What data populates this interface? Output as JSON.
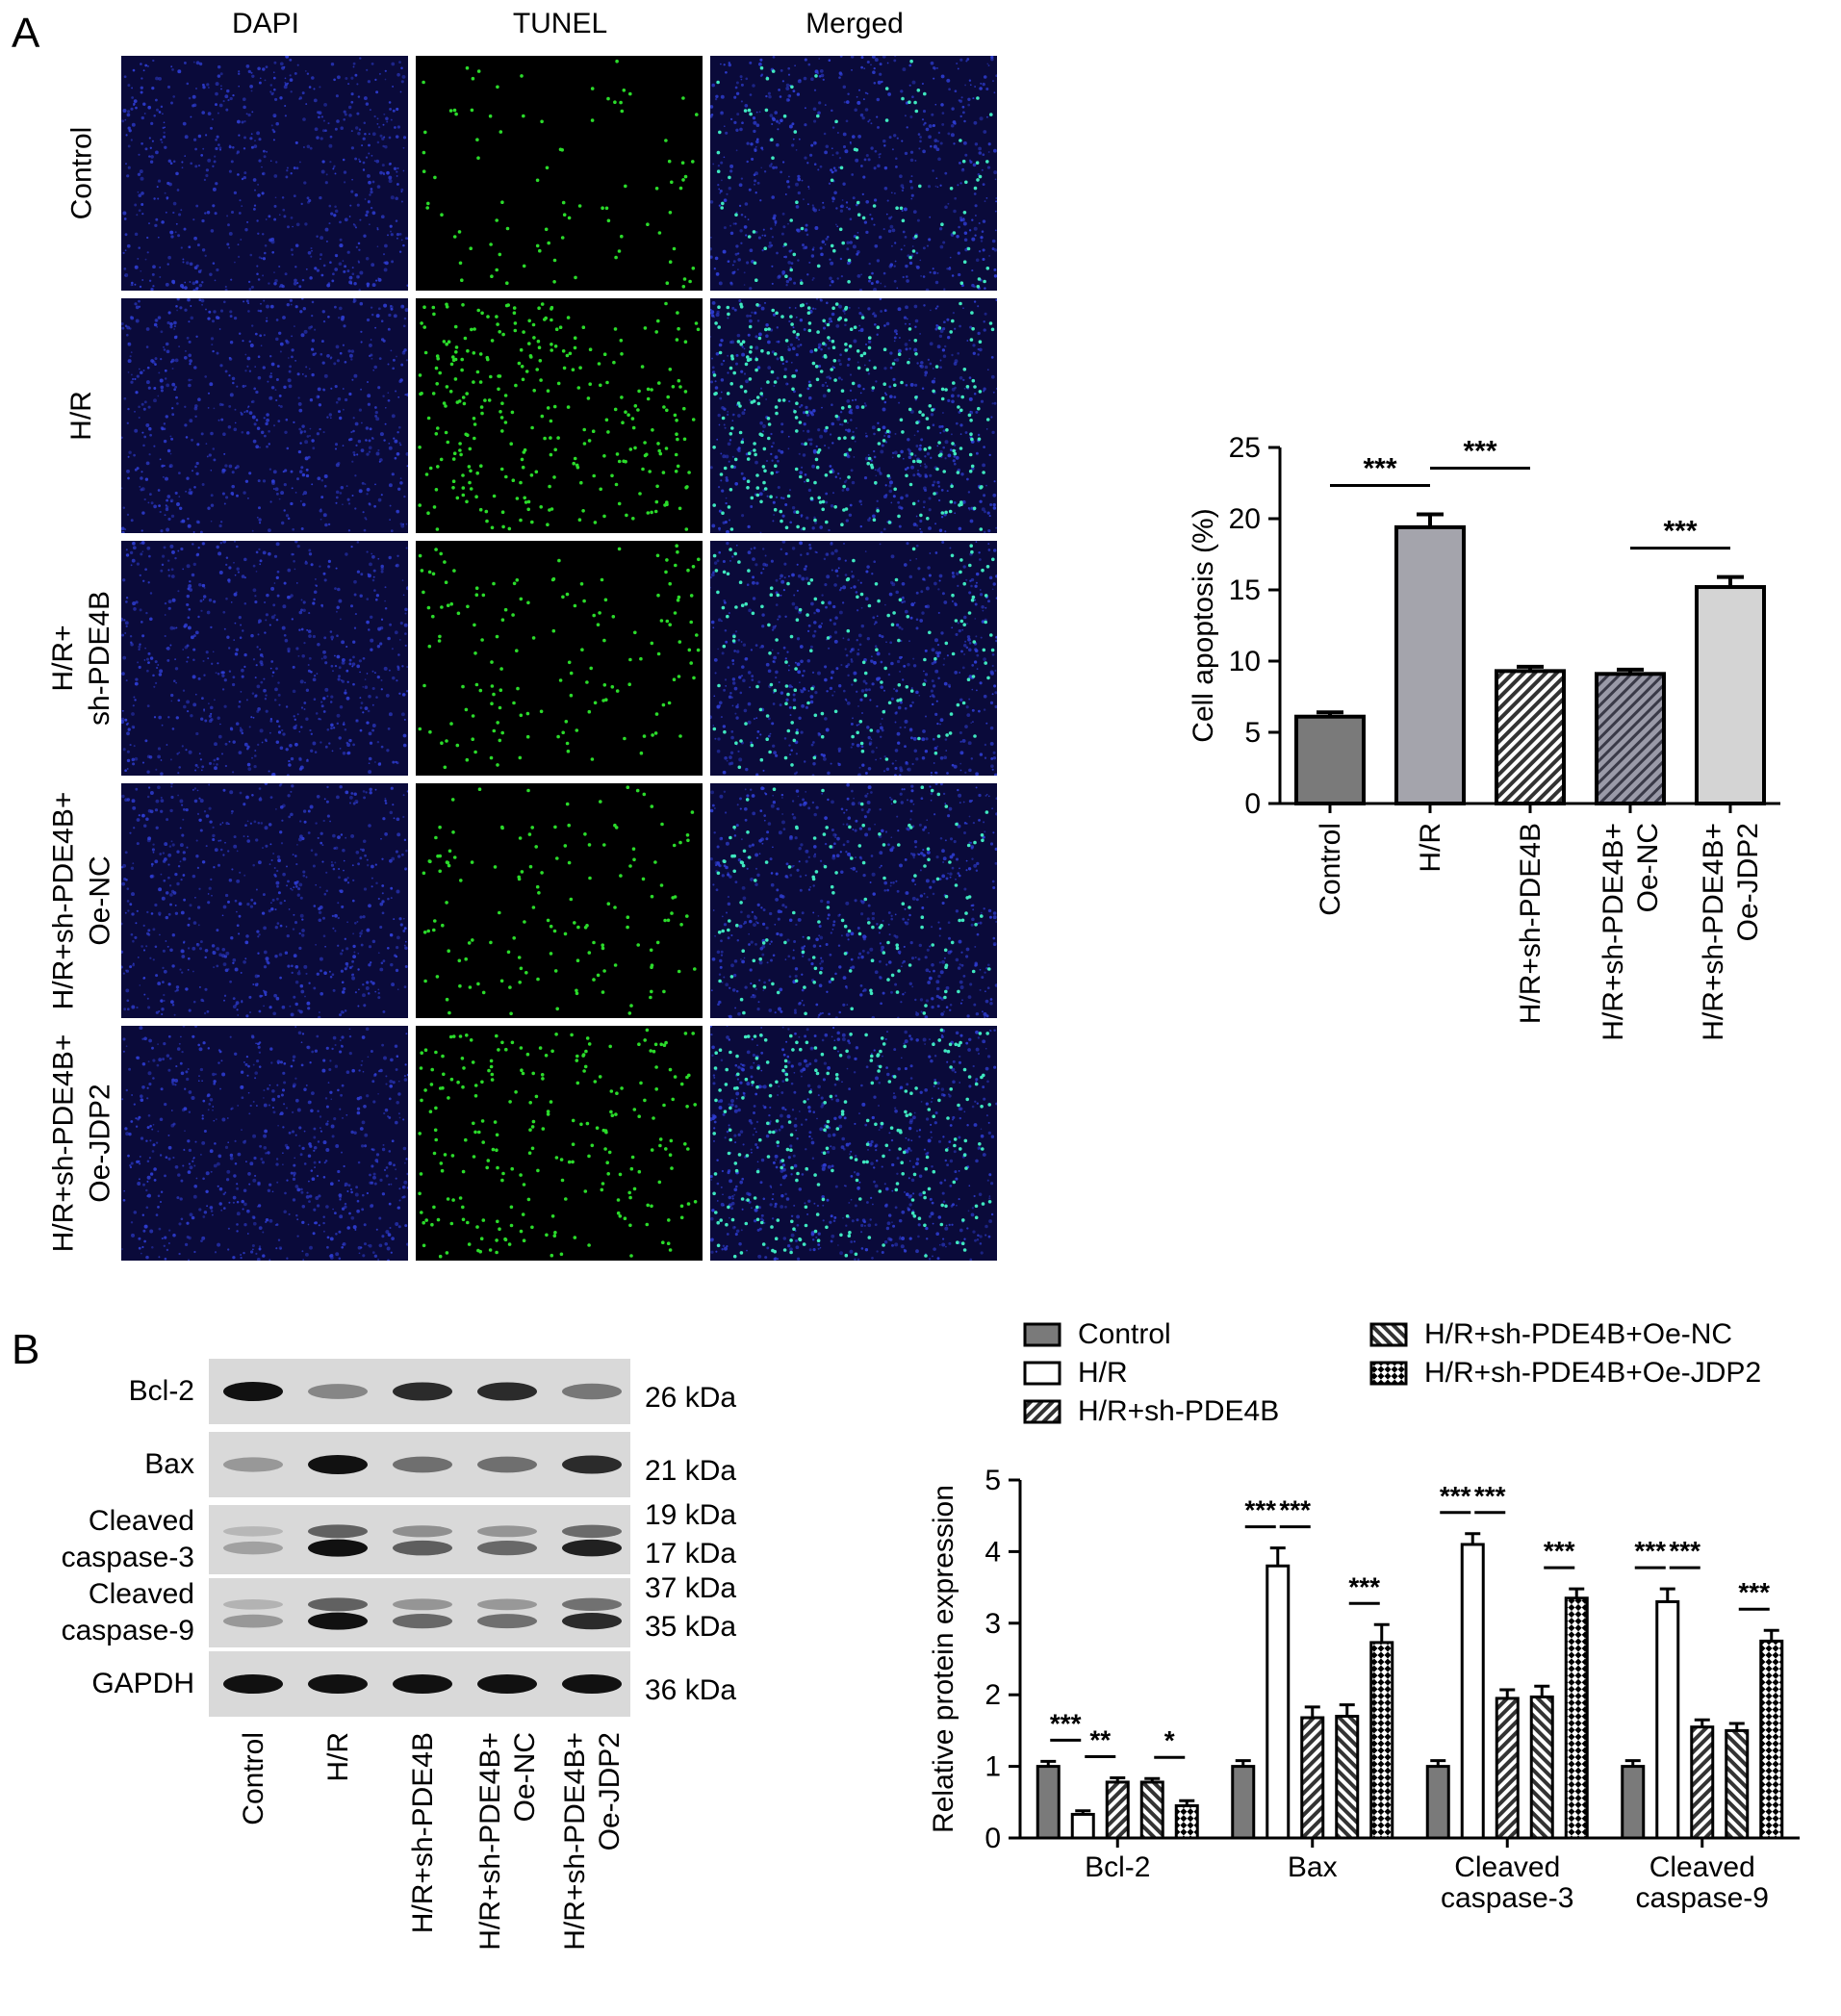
{
  "panel_a": {
    "letter": "A",
    "columns": [
      "DAPI",
      "TUNEL",
      "Merged"
    ],
    "rows": [
      {
        "lines": [
          "Control"
        ],
        "tunel_density": 0.1
      },
      {
        "lines": [
          "H/R"
        ],
        "tunel_density": 0.35
      },
      {
        "lines": [
          "H/R+",
          "sh-PDE4B"
        ],
        "tunel_density": 0.17
      },
      {
        "lines": [
          "H/R+sh-PDE4B+",
          "Oe-NC"
        ],
        "tunel_density": 0.16
      },
      {
        "lines": [
          "H/R+sh-PDE4B+",
          "Oe-JDP2"
        ],
        "tunel_density": 0.27
      }
    ]
  },
  "panel_b": {
    "letter": "B",
    "blot": {
      "rows": [
        {
          "label_lines": [
            "Bcl-2"
          ],
          "kda": [
            "26 kDa"
          ],
          "intensities": [
            1.0,
            0.3,
            0.85,
            0.85,
            0.4
          ]
        },
        {
          "label_lines": [
            "Bax"
          ],
          "kda": [
            "21 kDa"
          ],
          "intensities": [
            0.2,
            1.0,
            0.45,
            0.45,
            0.85
          ]
        },
        {
          "label_lines": [
            "Cleaved",
            "caspase-3"
          ],
          "kda": [
            "19 kDa",
            "17 kDa"
          ],
          "intensities": [
            0.15,
            1.0,
            0.55,
            0.5,
            0.9
          ]
        },
        {
          "label_lines": [
            "Cleaved",
            "caspase-9"
          ],
          "kda": [
            "37 kDa",
            "35 kDa"
          ],
          "intensities": [
            0.2,
            1.0,
            0.5,
            0.45,
            0.85
          ]
        },
        {
          "label_lines": [
            "GAPDH"
          ],
          "kda": [
            "36 kDa"
          ],
          "intensities": [
            1.0,
            1.0,
            1.0,
            1.0,
            1.0
          ]
        }
      ],
      "lanes": [
        [
          "Control"
        ],
        [
          "H/R"
        ],
        [
          "H/R+sh-PDE4B"
        ],
        [
          "H/R+sh-PDE4B+",
          "Oe-NC"
        ],
        [
          "H/R+sh-PDE4B+",
          "Oe-JDP2"
        ]
      ]
    }
  },
  "chart_data": [
    {
      "type": "bar",
      "id": "cell-apoptosis",
      "categories": [
        "Control",
        "H/R",
        "H/R+sh-PDE4B",
        "H/R+sh-PDE4B+ Oe-NC",
        "H/R+sh-PDE4B+ Oe-JDP2"
      ],
      "category_lines": [
        [
          "Control"
        ],
        [
          "H/R"
        ],
        [
          "H/R+sh-PDE4B"
        ],
        [
          "H/R+sh-PDE4B+",
          "Oe-NC"
        ],
        [
          "H/R+sh-PDE4B+",
          "Oe-JDP2"
        ]
      ],
      "values": [
        6.1,
        19.4,
        9.3,
        9.1,
        15.2
      ],
      "errors": [
        0.3,
        0.9,
        0.3,
        0.3,
        0.7
      ],
      "fills": [
        "#7a7a7a",
        "#a4a4ac",
        "hatch",
        "hatch2",
        "#d4d4d4"
      ],
      "ylabel": "Cell apoptosis (%)",
      "ylim": [
        0,
        25
      ],
      "yticks": [
        0,
        5,
        10,
        15,
        20,
        25
      ],
      "significance": [
        {
          "from": 0,
          "to": 1,
          "label": "***"
        },
        {
          "from": 1,
          "to": 2,
          "label": "***"
        },
        {
          "from": 3,
          "to": 4,
          "label": "***"
        }
      ]
    },
    {
      "type": "bar",
      "id": "relative-protein-expression",
      "categories": [
        "Bcl-2",
        "Bax",
        "Cleaved caspase-3",
        "Cleaved caspase-9"
      ],
      "category_lines": [
        [
          "Bcl-2"
        ],
        [
          "Bax"
        ],
        [
          "Cleaved",
          "caspase-3"
        ],
        [
          "Cleaved",
          "caspase-9"
        ]
      ],
      "series": [
        {
          "name": "Control",
          "values": [
            1.0,
            1.0,
            1.0,
            1.0
          ],
          "errors": [
            0.07,
            0.08,
            0.08,
            0.08
          ]
        },
        {
          "name": "H/R",
          "values": [
            0.33,
            3.8,
            4.1,
            3.3
          ],
          "errors": [
            0.05,
            0.25,
            0.15,
            0.18
          ]
        },
        {
          "name": "H/R+sh-PDE4B",
          "values": [
            0.78,
            1.68,
            1.95,
            1.55
          ],
          "errors": [
            0.06,
            0.15,
            0.12,
            0.1
          ]
        },
        {
          "name": "H/R+sh-PDE4B+Oe-NC",
          "values": [
            0.78,
            1.7,
            1.97,
            1.5
          ],
          "errors": [
            0.05,
            0.16,
            0.15,
            0.1
          ]
        },
        {
          "name": "H/R+sh-PDE4B+Oe-JDP2",
          "values": [
            0.45,
            2.73,
            3.35,
            2.75
          ],
          "errors": [
            0.07,
            0.25,
            0.13,
            0.15
          ]
        }
      ],
      "ylabel": "Relative protein expression",
      "ylim": [
        0,
        5
      ],
      "yticks": [
        0,
        1,
        2,
        3,
        4,
        5
      ],
      "significance": [
        {
          "group": 0,
          "from": 0,
          "to": 1,
          "label": "***"
        },
        {
          "group": 0,
          "from": 1,
          "to": 2,
          "label": "**"
        },
        {
          "group": 0,
          "from": 3,
          "to": 4,
          "label": "*"
        },
        {
          "group": 1,
          "from": 0,
          "to": 1,
          "label": "***"
        },
        {
          "group": 1,
          "from": 1,
          "to": 2,
          "label": "***"
        },
        {
          "group": 1,
          "from": 3,
          "to": 4,
          "label": "***"
        },
        {
          "group": 2,
          "from": 0,
          "to": 1,
          "label": "***"
        },
        {
          "group": 2,
          "from": 1,
          "to": 2,
          "label": "***"
        },
        {
          "group": 2,
          "from": 3,
          "to": 4,
          "label": "***"
        },
        {
          "group": 3,
          "from": 0,
          "to": 1,
          "label": "***"
        },
        {
          "group": 3,
          "from": 1,
          "to": 2,
          "label": "***"
        },
        {
          "group": 3,
          "from": 3,
          "to": 4,
          "label": "***"
        }
      ],
      "legend_position": "top"
    }
  ]
}
